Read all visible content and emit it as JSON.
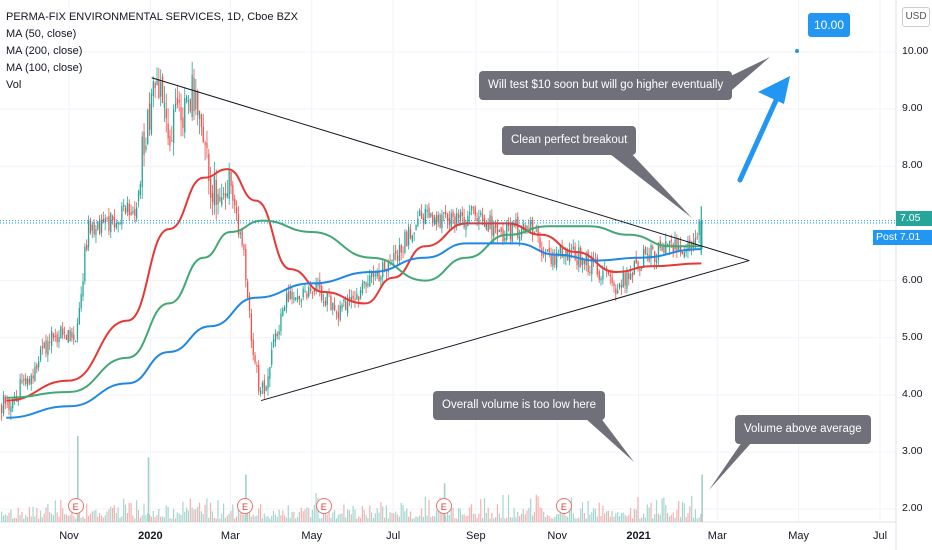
{
  "legend": {
    "title": "PERMA-FIX ENVIRONMENTAL SERVICES, 1D, Cboe BZX",
    "ma50": "MA (50, close)",
    "ma200": "MA (200, close)",
    "ma100": "MA (100, close)",
    "vol": "Vol"
  },
  "currency": "USD",
  "colors": {
    "up": "#26a69a",
    "down": "#ef5350",
    "ma50": "#e53935",
    "ma200": "#43a875",
    "ma100": "#1e88e5",
    "callout": "#6f7079",
    "accent": "#2196f3"
  },
  "price_tags": {
    "last_label": "7.05",
    "post_label": "Post 7.01"
  },
  "target_label": "10.00",
  "earnings_marker": "E",
  "annotations": {
    "top": "Will test $10 soon but will go higher eventually",
    "breakout": "Clean perfect breakout",
    "volume_low": "Overall volume is too low here",
    "volume_high": "Volume above average"
  },
  "chart_data": {
    "type": "candlestick",
    "symbol": "PERMA-FIX ENVIRONMENTAL SERVICES",
    "interval": "1D",
    "exchange": "Cboe BZX",
    "y_ticks": [
      "10.00",
      "9.00",
      "8.00",
      "7.00",
      "6.00",
      "5.00",
      "4.00",
      "3.00",
      "2.00"
    ],
    "y_tick_values": [
      10,
      9,
      8,
      7,
      6,
      5,
      4,
      3,
      2
    ],
    "ylim": [
      1.75,
      10.65
    ],
    "x_ticks": [
      {
        "label": "Nov",
        "bold": false,
        "date": "2019-11-01"
      },
      {
        "label": "2020",
        "bold": true,
        "date": "2020-01-01"
      },
      {
        "label": "Mar",
        "bold": false,
        "date": "2020-03-01"
      },
      {
        "label": "May",
        "bold": false,
        "date": "2020-05-01"
      },
      {
        "label": "Jul",
        "bold": false,
        "date": "2020-07-01"
      },
      {
        "label": "Sep",
        "bold": false,
        "date": "2020-09-01"
      },
      {
        "label": "Nov",
        "bold": false,
        "date": "2020-11-01"
      },
      {
        "label": "2021",
        "bold": true,
        "date": "2021-01-01"
      },
      {
        "label": "Mar",
        "bold": false,
        "date": "2021-03-01"
      },
      {
        "label": "May",
        "bold": false,
        "date": "2021-05-01"
      },
      {
        "label": "Jul",
        "bold": false,
        "date": "2021-07-01"
      }
    ],
    "price_path": [
      {
        "date": "2019-09-15",
        "close": 3.85
      },
      {
        "date": "2019-10-01",
        "close": 4.3
      },
      {
        "date": "2019-10-20",
        "close": 5.1
      },
      {
        "date": "2019-11-05",
        "close": 5.0
      },
      {
        "date": "2019-11-15",
        "close": 6.9
      },
      {
        "date": "2019-12-01",
        "close": 7.0
      },
      {
        "date": "2019-12-20",
        "close": 7.3
      },
      {
        "date": "2019-12-28",
        "close": 8.6
      },
      {
        "date": "2020-01-05",
        "close": 9.5
      },
      {
        "date": "2020-01-15",
        "close": 8.6
      },
      {
        "date": "2020-02-01",
        "close": 9.3
      },
      {
        "date": "2020-02-15",
        "close": 7.6
      },
      {
        "date": "2020-02-28",
        "close": 7.8
      },
      {
        "date": "2020-03-10",
        "close": 6.6
      },
      {
        "date": "2020-03-18",
        "close": 4.6
      },
      {
        "date": "2020-03-24",
        "close": 4.0
      },
      {
        "date": "2020-04-10",
        "close": 5.6
      },
      {
        "date": "2020-05-01",
        "close": 5.9
      },
      {
        "date": "2020-05-20",
        "close": 5.5
      },
      {
        "date": "2020-06-10",
        "close": 5.9
      },
      {
        "date": "2020-07-01",
        "close": 6.4
      },
      {
        "date": "2020-07-20",
        "close": 7.1
      },
      {
        "date": "2020-08-15",
        "close": 7.0
      },
      {
        "date": "2020-09-01",
        "close": 7.2
      },
      {
        "date": "2020-09-20",
        "close": 6.8
      },
      {
        "date": "2020-10-10",
        "close": 7.0
      },
      {
        "date": "2020-10-25",
        "close": 6.4
      },
      {
        "date": "2020-11-10",
        "close": 6.5
      },
      {
        "date": "2020-12-01",
        "close": 6.2
      },
      {
        "date": "2020-12-15",
        "close": 5.9
      },
      {
        "date": "2021-01-05",
        "close": 6.4
      },
      {
        "date": "2021-01-25",
        "close": 6.6
      },
      {
        "date": "2021-02-10",
        "close": 6.6
      },
      {
        "date": "2021-02-17",
        "close": 7.05
      }
    ],
    "moving_averages": [
      {
        "name": "MA (50, close)",
        "points": [
          {
            "date": "2019-09-15",
            "value": 3.9
          },
          {
            "date": "2019-11-01",
            "value": 4.25
          },
          {
            "date": "2019-12-15",
            "value": 5.3
          },
          {
            "date": "2020-01-15",
            "value": 6.9
          },
          {
            "date": "2020-02-10",
            "value": 7.8
          },
          {
            "date": "2020-02-28",
            "value": 7.95
          },
          {
            "date": "2020-03-20",
            "value": 7.4
          },
          {
            "date": "2020-04-15",
            "value": 6.2
          },
          {
            "date": "2020-05-10",
            "value": 5.8
          },
          {
            "date": "2020-06-10",
            "value": 5.6
          },
          {
            "date": "2020-07-01",
            "value": 6.05
          },
          {
            "date": "2020-07-25",
            "value": 6.6
          },
          {
            "date": "2020-08-25",
            "value": 7.0
          },
          {
            "date": "2020-09-25",
            "value": 7.0
          },
          {
            "date": "2020-10-20",
            "value": 6.8
          },
          {
            "date": "2020-11-15",
            "value": 6.5
          },
          {
            "date": "2020-12-15",
            "value": 6.15
          },
          {
            "date": "2021-01-10",
            "value": 6.25
          },
          {
            "date": "2021-02-17",
            "value": 6.3
          }
        ]
      },
      {
        "name": "MA (200, close)",
        "points": [
          {
            "date": "2019-09-15",
            "value": 3.95
          },
          {
            "date": "2019-11-01",
            "value": 4.05
          },
          {
            "date": "2019-12-15",
            "value": 4.65
          },
          {
            "date": "2020-01-15",
            "value": 5.6
          },
          {
            "date": "2020-02-10",
            "value": 6.4
          },
          {
            "date": "2020-03-01",
            "value": 6.85
          },
          {
            "date": "2020-03-25",
            "value": 7.05
          },
          {
            "date": "2020-05-01",
            "value": 6.85
          },
          {
            "date": "2020-06-15",
            "value": 6.4
          },
          {
            "date": "2020-07-25",
            "value": 6.0
          },
          {
            "date": "2020-08-25",
            "value": 6.4
          },
          {
            "date": "2020-09-25",
            "value": 6.8
          },
          {
            "date": "2020-10-25",
            "value": 6.95
          },
          {
            "date": "2020-11-25",
            "value": 6.95
          },
          {
            "date": "2020-12-25",
            "value": 6.8
          },
          {
            "date": "2021-01-25",
            "value": 6.6
          },
          {
            "date": "2021-02-17",
            "value": 6.6
          }
        ]
      },
      {
        "name": "MA (100, close)",
        "points": [
          {
            "date": "2019-09-15",
            "value": 3.6
          },
          {
            "date": "2019-11-01",
            "value": 3.8
          },
          {
            "date": "2019-12-15",
            "value": 4.2
          },
          {
            "date": "2020-01-15",
            "value": 4.75
          },
          {
            "date": "2020-02-15",
            "value": 5.2
          },
          {
            "date": "2020-03-20",
            "value": 5.7
          },
          {
            "date": "2020-05-01",
            "value": 5.95
          },
          {
            "date": "2020-06-15",
            "value": 6.15
          },
          {
            "date": "2020-07-25",
            "value": 6.4
          },
          {
            "date": "2020-08-25",
            "value": 6.65
          },
          {
            "date": "2020-10-01",
            "value": 6.65
          },
          {
            "date": "2020-11-01",
            "value": 6.45
          },
          {
            "date": "2020-12-01",
            "value": 6.35
          },
          {
            "date": "2021-01-01",
            "value": 6.4
          },
          {
            "date": "2021-02-17",
            "value": 6.55
          }
        ]
      }
    ],
    "trendlines": [
      {
        "name": "resistance",
        "start": {
          "date": "2020-01-02",
          "price": 9.55
        },
        "end": {
          "date": "2021-03-25",
          "price": 6.35
        }
      },
      {
        "name": "support",
        "start": {
          "date": "2020-03-24",
          "price": 3.9
        },
        "end": {
          "date": "2021-03-25",
          "price": 6.35
        }
      }
    ],
    "last_price": 7.05,
    "post_price": 7.01,
    "target_price": 10.0,
    "earnings_dates": [
      "2019-11-06",
      "2020-03-12",
      "2020-05-10",
      "2020-08-08",
      "2020-11-06"
    ],
    "volume_baseline_pct": 0.3,
    "volume_spikes": [
      {
        "date": "2019-11-07",
        "pct": 1.0
      },
      {
        "date": "2019-12-30",
        "pct": 0.75
      },
      {
        "date": "2020-03-12",
        "pct": 0.55
      },
      {
        "date": "2020-08-08",
        "pct": 0.45
      },
      {
        "date": "2021-02-17",
        "pct": 0.55
      }
    ]
  }
}
